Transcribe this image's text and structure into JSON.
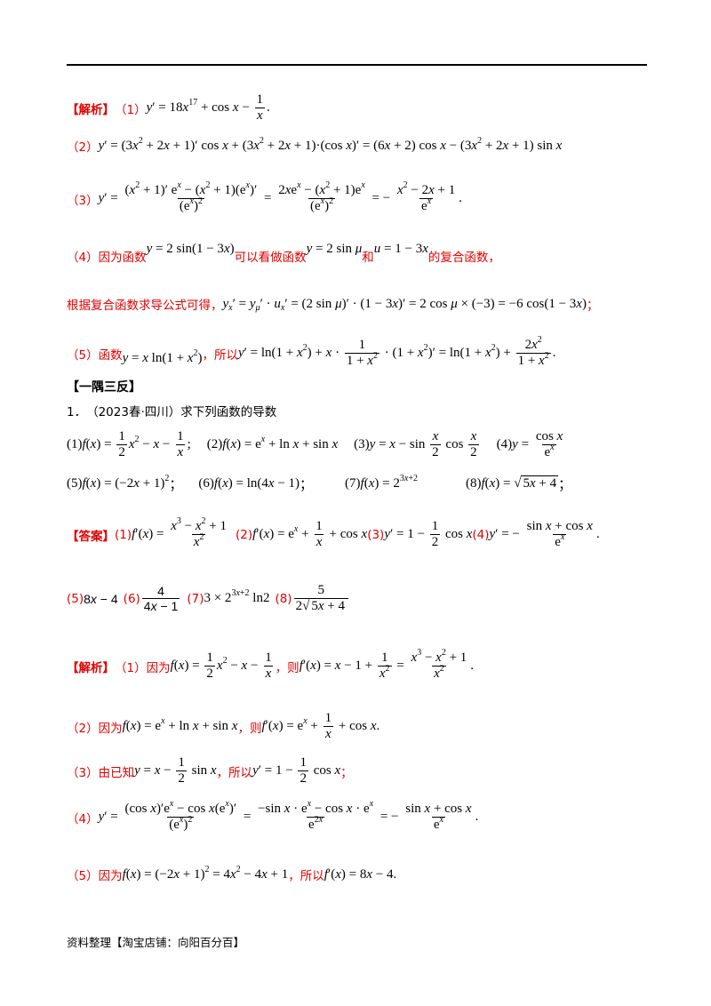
{
  "jiexi_label": "【解析】",
  "yiyu_label": "【一隅三反】",
  "answer_label": "【答案】",
  "part1": {
    "n": "（1）"
  },
  "part2": {
    "n": "（2）"
  },
  "part3": {
    "n": "（3）"
  },
  "part4": {
    "n": "（4）",
    "t1": "因为函数",
    "t2": "可以看做函数",
    "t3": "和",
    "t4": "的复合函数，"
  },
  "part4b": {
    "t1": "根据复合函数求导公式可得，",
    "end": "；"
  },
  "part5": {
    "n": "（5）",
    "t1": "函数",
    "t2": "，所以"
  },
  "problem1": {
    "n": "1．",
    "source": "（2023春·四川）",
    "text": "求下列函数的导数"
  },
  "items": [
    "(1)",
    "(2)",
    "(3)",
    "(4)",
    "(5)",
    "(6)",
    "(7)",
    "(8)"
  ],
  "sep": "；",
  "ans": [
    "(1)",
    "(2)",
    "(3)",
    "(4)",
    "(5)",
    "(6)",
    "(7)",
    "(8)"
  ],
  "sol": {
    "s1a": "（1）因为",
    "s1b": "，则",
    "s2a": "（2）因为",
    "s2b": "，则",
    "s3a": "（3）由已知",
    "s3b": "，所以",
    "s3c": "；",
    "s4a": "（4）",
    "s5a": "（5）因为",
    "s5b": "，所以"
  },
  "footer": "资料整理【淘宝店铺：向阳百分百】"
}
